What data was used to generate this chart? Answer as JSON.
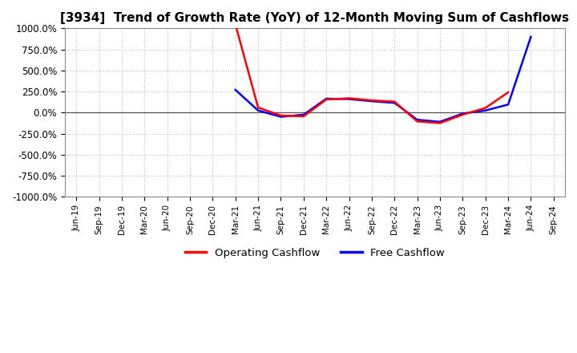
{
  "title": "[3934]  Trend of Growth Rate (YoY) of 12-Month Moving Sum of Cashflows",
  "title_fontsize": 11,
  "ylim": [
    -1000,
    1000
  ],
  "yticks": [
    -1000,
    -750,
    -500,
    -250,
    0,
    250,
    500,
    750,
    1000
  ],
  "ytick_labels": [
    "-1000.0%",
    "-750.0%",
    "-500.0%",
    "-250.0%",
    "0.0%",
    "250.0%",
    "500.0%",
    "750.0%",
    "1000.0%"
  ],
  "background_color": "#ffffff",
  "plot_bg_color": "#ffffff",
  "grid_color": "#bbbbbb",
  "operating_color": "#ff0000",
  "free_color": "#0000ff",
  "legend_labels": [
    "Operating Cashflow",
    "Free Cashflow"
  ],
  "x_dates": [
    "Jun-19",
    "Sep-19",
    "Dec-19",
    "Mar-20",
    "Jun-20",
    "Sep-20",
    "Dec-20",
    "Mar-21",
    "Jun-21",
    "Sep-21",
    "Dec-21",
    "Mar-22",
    "Jun-22",
    "Sep-22",
    "Dec-22",
    "Mar-23",
    "Jun-23",
    "Sep-23",
    "Dec-23",
    "Mar-24",
    "Jun-24",
    "Sep-24"
  ],
  "operating_cashflow": [
    null,
    null,
    null,
    null,
    null,
    null,
    null,
    1050,
    60,
    -35,
    -45,
    155,
    170,
    145,
    130,
    -105,
    -125,
    -25,
    55,
    240,
    null,
    null
  ],
  "free_cashflow": [
    null,
    null,
    null,
    null,
    null,
    null,
    null,
    270,
    25,
    -50,
    -25,
    165,
    160,
    135,
    115,
    -85,
    -110,
    -12,
    25,
    95,
    900,
    null
  ]
}
